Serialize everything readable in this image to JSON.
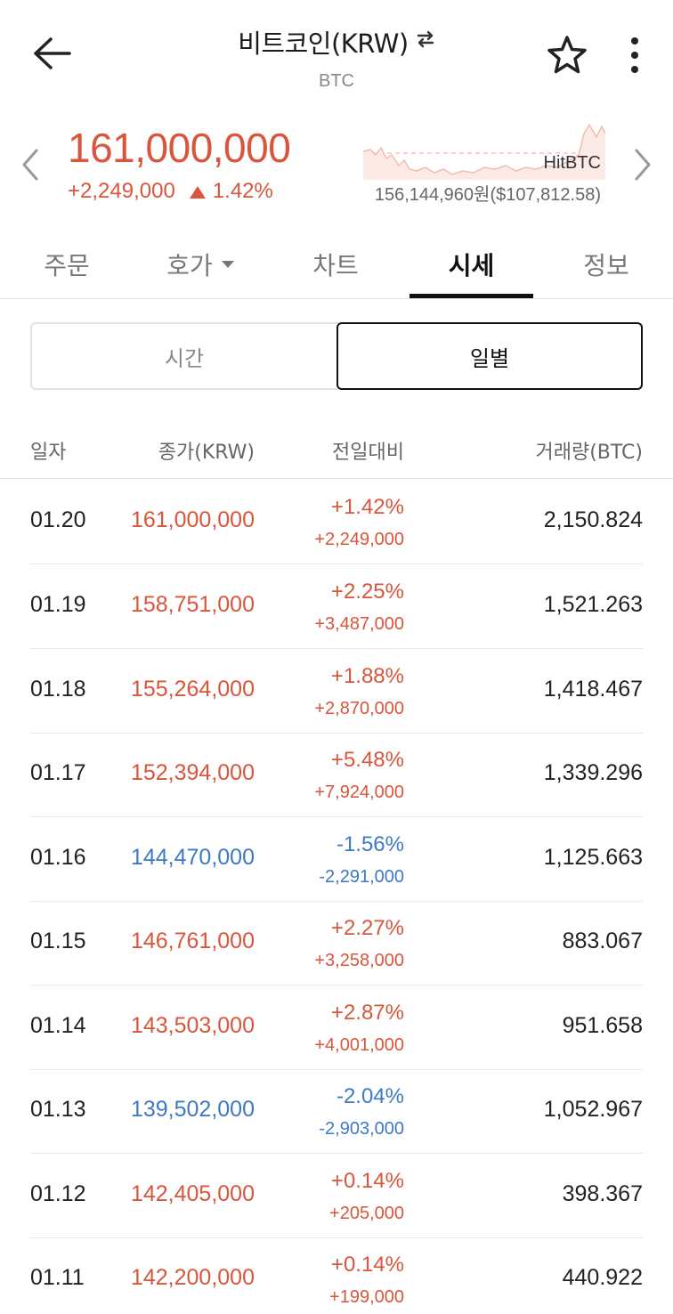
{
  "header": {
    "title": "비트코인(KRW)",
    "subtitle": "BTC",
    "back_icon": "back-arrow-icon",
    "swap_icon": "swap-icon",
    "star_icon": "star-icon",
    "more_icon": "more-vertical-icon"
  },
  "summary": {
    "price": "161,000,000",
    "change": "+2,249,000",
    "change_pct": "1.42%",
    "exchange_name": "HitBTC",
    "exchange_price": "156,144,960원($107,812.58)"
  },
  "tabs": [
    {
      "label": "주문"
    },
    {
      "label": "호가"
    },
    {
      "label": "차트"
    },
    {
      "label": "시세"
    },
    {
      "label": "정보"
    }
  ],
  "segment": {
    "left": "시간",
    "right": "일별"
  },
  "table": {
    "headers": {
      "date": "일자",
      "close": "종가(KRW)",
      "change": "전일대비",
      "volume": "거래량(BTC)"
    },
    "rows": [
      {
        "date": "01.20",
        "close": "161,000,000",
        "pct": "+1.42%",
        "diff": "+2,249,000",
        "volume": "2,150.824",
        "dir": "up"
      },
      {
        "date": "01.19",
        "close": "158,751,000",
        "pct": "+2.25%",
        "diff": "+3,487,000",
        "volume": "1,521.263",
        "dir": "up"
      },
      {
        "date": "01.18",
        "close": "155,264,000",
        "pct": "+1.88%",
        "diff": "+2,870,000",
        "volume": "1,418.467",
        "dir": "up"
      },
      {
        "date": "01.17",
        "close": "152,394,000",
        "pct": "+5.48%",
        "diff": "+7,924,000",
        "volume": "1,339.296",
        "dir": "up"
      },
      {
        "date": "01.16",
        "close": "144,470,000",
        "pct": "-1.56%",
        "diff": "-2,291,000",
        "volume": "1,125.663",
        "dir": "down"
      },
      {
        "date": "01.15",
        "close": "146,761,000",
        "pct": "+2.27%",
        "diff": "+3,258,000",
        "volume": "883.067",
        "dir": "up"
      },
      {
        "date": "01.14",
        "close": "143,503,000",
        "pct": "+2.87%",
        "diff": "+4,001,000",
        "volume": "951.658",
        "dir": "up"
      },
      {
        "date": "01.13",
        "close": "139,502,000",
        "pct": "-2.04%",
        "diff": "-2,903,000",
        "volume": "1,052.967",
        "dir": "down"
      },
      {
        "date": "01.12",
        "close": "142,405,000",
        "pct": "+0.14%",
        "diff": "+205,000",
        "volume": "398.367",
        "dir": "up"
      },
      {
        "date": "01.11",
        "close": "142,200,000",
        "pct": "+0.14%",
        "diff": "+199,000",
        "volume": "440.922",
        "dir": "up"
      }
    ]
  },
  "colors": {
    "up": "#d9553b",
    "down": "#3d79c6"
  }
}
